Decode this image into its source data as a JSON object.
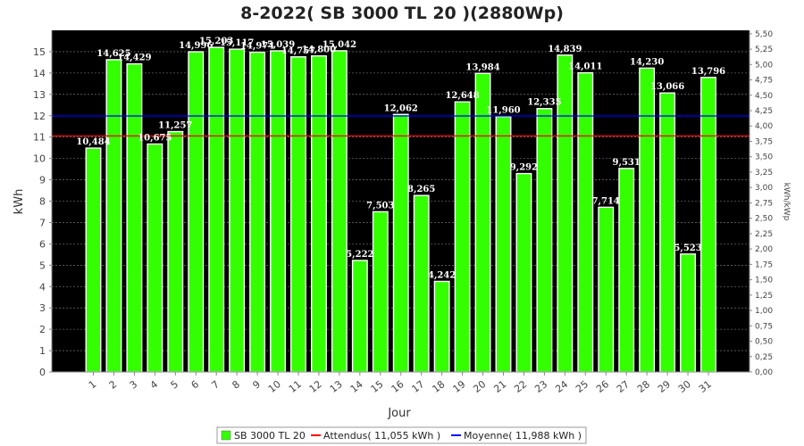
{
  "chart_data": {
    "type": "bar",
    "title": "8-2022( SB 3000 TL 20 )(2880Wp)",
    "xlabel": "Jour",
    "ylabel": "kWh",
    "y2label": "kWh/kWp",
    "ylim": [
      0,
      16
    ],
    "yticks": [
      "0",
      "1",
      "2",
      "3",
      "4",
      "5",
      "6",
      "7",
      "8",
      "9",
      "10",
      "11",
      "12",
      "13",
      "14",
      "15"
    ],
    "y2lim": [
      0,
      5.5556
    ],
    "y2ticks": [
      "0,00",
      "0,25",
      "0,50",
      "0,75",
      "1,00",
      "1,25",
      "1,50",
      "1,75",
      "2,00",
      "2,25",
      "2,50",
      "2,75",
      "3,00",
      "3,25",
      "3,50",
      "3,75",
      "4,00",
      "4,25",
      "4,50",
      "4,75",
      "5,00",
      "5,25",
      "5,50"
    ],
    "categories": [
      "1",
      "2",
      "3",
      "4",
      "5",
      "6",
      "7",
      "8",
      "9",
      "10",
      "11",
      "12",
      "13",
      "14",
      "15",
      "16",
      "17",
      "18",
      "19",
      "20",
      "21",
      "22",
      "23",
      "24",
      "25",
      "26",
      "27",
      "28",
      "29",
      "30",
      "31"
    ],
    "series": [
      {
        "name": "SB 3000 TL 20",
        "color": "#33ff00",
        "values": [
          10.484,
          14.625,
          14.429,
          10.675,
          11.257,
          14.996,
          15.203,
          15.117,
          14.974,
          15.039,
          14.757,
          14.8,
          15.042,
          5.222,
          7.503,
          12.062,
          8.265,
          4.242,
          12.648,
          13.984,
          11.96,
          9.292,
          12.335,
          14.839,
          14.011,
          7.714,
          9.531,
          14.23,
          13.066,
          5.523,
          13.796
        ],
        "labels": [
          "10,484",
          "14,625",
          "14,429",
          "10,675",
          "11,257",
          "14,996",
          "15,203",
          "15,117",
          "14,974",
          "15,039",
          "14,757",
          "14,800",
          "15,042",
          "5,222",
          "7,503",
          "12,062",
          "8,265",
          "4,242",
          "12,648",
          "13,984",
          "11,960",
          "9,292",
          "12,335",
          "14,839",
          "14,011",
          "7,714",
          "9,531",
          "14,230",
          "13,066",
          "5,523",
          "13,796"
        ]
      }
    ],
    "reference_lines": [
      {
        "name": "Attendus( 11,055 kWh )",
        "value": 11.055,
        "color": "#ff0000"
      },
      {
        "name": "Moyenne( 11,988 kWh )",
        "value": 11.988,
        "color": "#0000ff"
      }
    ],
    "legend_position": "bottom-center",
    "grid": true,
    "background": "#000000"
  }
}
